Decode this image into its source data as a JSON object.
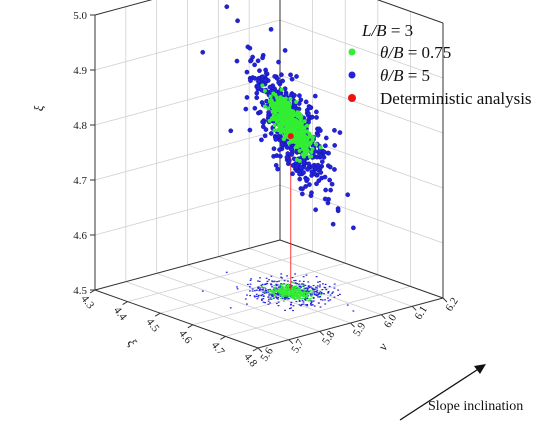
{
  "chart_data": {
    "type": "scatter",
    "x_label": "ξ",
    "y_label": "ν",
    "z_label": "ξ",
    "x_ticks": [
      "4.3",
      "4.4",
      "4.5",
      "4.6",
      "4.7",
      "4.8"
    ],
    "y_ticks": [
      "5.6",
      "5.7",
      "5.8",
      "5.9",
      "6.0",
      "6.1",
      "6.2"
    ],
    "z_ticks": [
      "4.5",
      "4.6",
      "4.7",
      "4.8",
      "4.9",
      "5.0"
    ],
    "xlim": [
      4.3,
      4.8
    ],
    "ylim": [
      5.6,
      6.2
    ],
    "zlim": [
      4.5,
      5.0
    ],
    "grid": true,
    "legend_position": "top-right",
    "legend_title": {
      "prefix": "L/B",
      "suffix": " = 3"
    },
    "series": [
      {
        "name_prefix": "θ/B",
        "name_suffix": " = 0.75",
        "color": "#33ee33",
        "count": 400,
        "center": [
          4.57,
          5.95,
          4.805
        ],
        "spread": [
          0.022,
          0.022,
          0.02
        ]
      },
      {
        "name_prefix": "θ/B",
        "name_suffix": " = 5",
        "color": "#2222dd",
        "count": 500,
        "center": [
          4.57,
          5.95,
          4.8
        ],
        "spread": [
          0.045,
          0.045,
          0.05
        ]
      },
      {
        "name": "Deterministic analysis",
        "color": "#ee1111",
        "points": [
          [
            4.56,
            5.96,
            4.78
          ]
        ]
      }
    ],
    "annotation": "Slope inclination"
  },
  "colors": {
    "axis": "#333333",
    "grid": "#d0d0d0",
    "drop_line": "#ff2222"
  }
}
